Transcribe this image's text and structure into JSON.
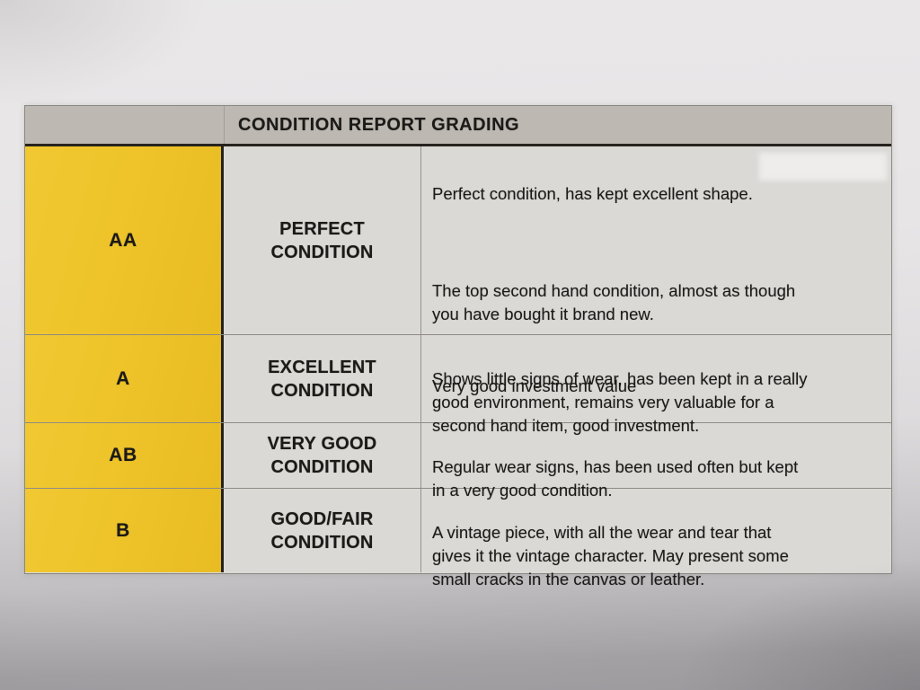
{
  "document": {
    "title": "CONDITION REPORT GRADING",
    "rows": [
      {
        "grade": "AA",
        "label_line1": "PERFECT",
        "label_line2": "CONDITION",
        "desc_1": "Perfect condition, has kept excellent shape.",
        "desc_2": "The top second hand condition, almost as though\nyou have bought it brand new.",
        "desc_3": "Very good investment value"
      },
      {
        "grade": "A",
        "label_line1": "EXCELLENT",
        "label_line2": "CONDITION",
        "desc_1": "Shows little signs of wear, has been kept in a really\ngood environment, remains very valuable for a\nsecond hand item, good investment."
      },
      {
        "grade": "AB",
        "label_line1": "VERY GOOD",
        "label_line2": "CONDITION",
        "desc_1": "Regular wear signs, has been used often but kept\nin a very good condition."
      },
      {
        "grade": "B",
        "label_line1": "GOOD/FAIR",
        "label_line2": "CONDITION",
        "desc_1": "A vintage piece, with all the wear and tear that\ngives it the vintage character. May present some\nsmall cracks in the canvas or leather."
      }
    ],
    "colors": {
      "grade_column_yellow": "#EEC42A",
      "header_gray": "#BDB9B2",
      "cell_background": "#DBD9D6",
      "paper_background": "#E7E5E6",
      "text": "#1C1A18"
    }
  }
}
